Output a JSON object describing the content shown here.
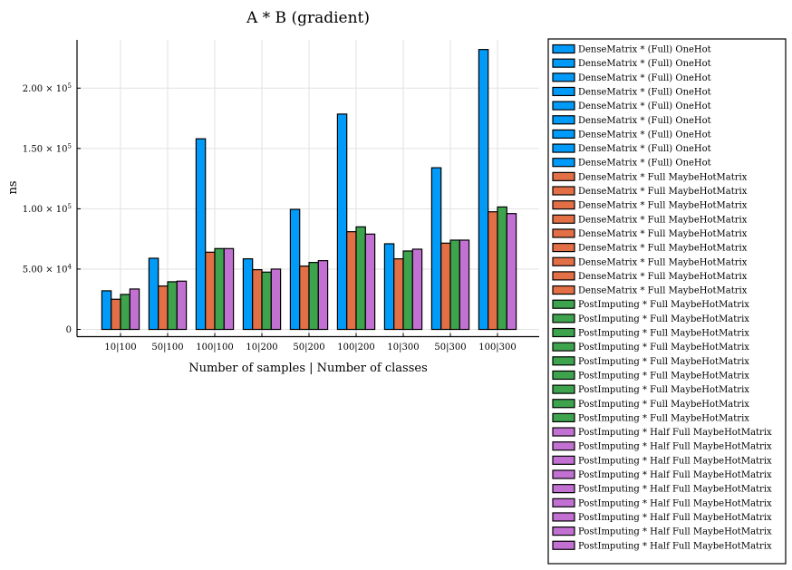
{
  "chart_data": {
    "type": "bar",
    "title": "A * B (gradient)",
    "xlabel": "Number of samples | Number of classes",
    "ylabel": "ns",
    "categories": [
      "10|100",
      "50|100",
      "100|100",
      "10|200",
      "50|200",
      "100|200",
      "10|300",
      "50|300",
      "100|300"
    ],
    "ylim": [
      -6000,
      240000
    ],
    "yticks": [
      {
        "value": 0,
        "mantissa": "0",
        "exp": ""
      },
      {
        "value": 50000,
        "mantissa": "5.00 × 10",
        "exp": "4"
      },
      {
        "value": 100000,
        "mantissa": "1.00 × 10",
        "exp": "5"
      },
      {
        "value": 150000,
        "mantissa": "1.50 × 10",
        "exp": "5"
      },
      {
        "value": 200000,
        "mantissa": "2.00 × 10",
        "exp": "5"
      }
    ],
    "grid": true,
    "legend_position": "outside-right",
    "series": [
      {
        "name": "DenseMatrix * (Full) OneHot",
        "color": "#009af9",
        "values": [
          32000,
          59000,
          158000,
          58500,
          99500,
          178500,
          71000,
          134000,
          232000
        ]
      },
      {
        "name": "DenseMatrix * Full MaybeHotMatrix",
        "color": "#e26f46",
        "values": [
          25000,
          36000,
          64000,
          49500,
          52500,
          81000,
          58500,
          71500,
          97500
        ]
      },
      {
        "name": "PostImputing * Full MaybeHotMatrix",
        "color": "#3da44d",
        "values": [
          29000,
          39500,
          67000,
          47500,
          55500,
          85000,
          65000,
          74000,
          101500
        ]
      },
      {
        "name": "PostImputing * Half Full MaybeHotMatrix",
        "color": "#c271d2",
        "values": [
          33500,
          40000,
          67000,
          50000,
          57000,
          79000,
          66500,
          74000,
          96000
        ]
      }
    ],
    "legend_entries": [
      {
        "label": "DenseMatrix * (Full) OneHot",
        "color": "#009af9"
      },
      {
        "label": "DenseMatrix * (Full) OneHot",
        "color": "#009af9"
      },
      {
        "label": "DenseMatrix * (Full) OneHot",
        "color": "#009af9"
      },
      {
        "label": "DenseMatrix * (Full) OneHot",
        "color": "#009af9"
      },
      {
        "label": "DenseMatrix * (Full) OneHot",
        "color": "#009af9"
      },
      {
        "label": "DenseMatrix * (Full) OneHot",
        "color": "#009af9"
      },
      {
        "label": "DenseMatrix * (Full) OneHot",
        "color": "#009af9"
      },
      {
        "label": "DenseMatrix * (Full) OneHot",
        "color": "#009af9"
      },
      {
        "label": "DenseMatrix * (Full) OneHot",
        "color": "#009af9"
      },
      {
        "label": "DenseMatrix * Full MaybeHotMatrix",
        "color": "#e26f46"
      },
      {
        "label": "DenseMatrix * Full MaybeHotMatrix",
        "color": "#e26f46"
      },
      {
        "label": "DenseMatrix * Full MaybeHotMatrix",
        "color": "#e26f46"
      },
      {
        "label": "DenseMatrix * Full MaybeHotMatrix",
        "color": "#e26f46"
      },
      {
        "label": "DenseMatrix * Full MaybeHotMatrix",
        "color": "#e26f46"
      },
      {
        "label": "DenseMatrix * Full MaybeHotMatrix",
        "color": "#e26f46"
      },
      {
        "label": "DenseMatrix * Full MaybeHotMatrix",
        "color": "#e26f46"
      },
      {
        "label": "DenseMatrix * Full MaybeHotMatrix",
        "color": "#e26f46"
      },
      {
        "label": "DenseMatrix * Full MaybeHotMatrix",
        "color": "#e26f46"
      },
      {
        "label": "PostImputing * Full MaybeHotMatrix",
        "color": "#3da44d"
      },
      {
        "label": "PostImputing * Full MaybeHotMatrix",
        "color": "#3da44d"
      },
      {
        "label": "PostImputing * Full MaybeHotMatrix",
        "color": "#3da44d"
      },
      {
        "label": "PostImputing * Full MaybeHotMatrix",
        "color": "#3da44d"
      },
      {
        "label": "PostImputing * Full MaybeHotMatrix",
        "color": "#3da44d"
      },
      {
        "label": "PostImputing * Full MaybeHotMatrix",
        "color": "#3da44d"
      },
      {
        "label": "PostImputing * Full MaybeHotMatrix",
        "color": "#3da44d"
      },
      {
        "label": "PostImputing * Full MaybeHotMatrix",
        "color": "#3da44d"
      },
      {
        "label": "PostImputing * Full MaybeHotMatrix",
        "color": "#3da44d"
      },
      {
        "label": "PostImputing * Half Full MaybeHotMatrix",
        "color": "#c271d2"
      },
      {
        "label": "PostImputing * Half Full MaybeHotMatrix",
        "color": "#c271d2"
      },
      {
        "label": "PostImputing * Half Full MaybeHotMatrix",
        "color": "#c271d2"
      },
      {
        "label": "PostImputing * Half Full MaybeHotMatrix",
        "color": "#c271d2"
      },
      {
        "label": "PostImputing * Half Full MaybeHotMatrix",
        "color": "#c271d2"
      },
      {
        "label": "PostImputing * Half Full MaybeHotMatrix",
        "color": "#c271d2"
      },
      {
        "label": "PostImputing * Half Full MaybeHotMatrix",
        "color": "#c271d2"
      },
      {
        "label": "PostImputing * Half Full MaybeHotMatrix",
        "color": "#c271d2"
      },
      {
        "label": "PostImputing * Half Full MaybeHotMatrix",
        "color": "#c271d2"
      }
    ]
  }
}
